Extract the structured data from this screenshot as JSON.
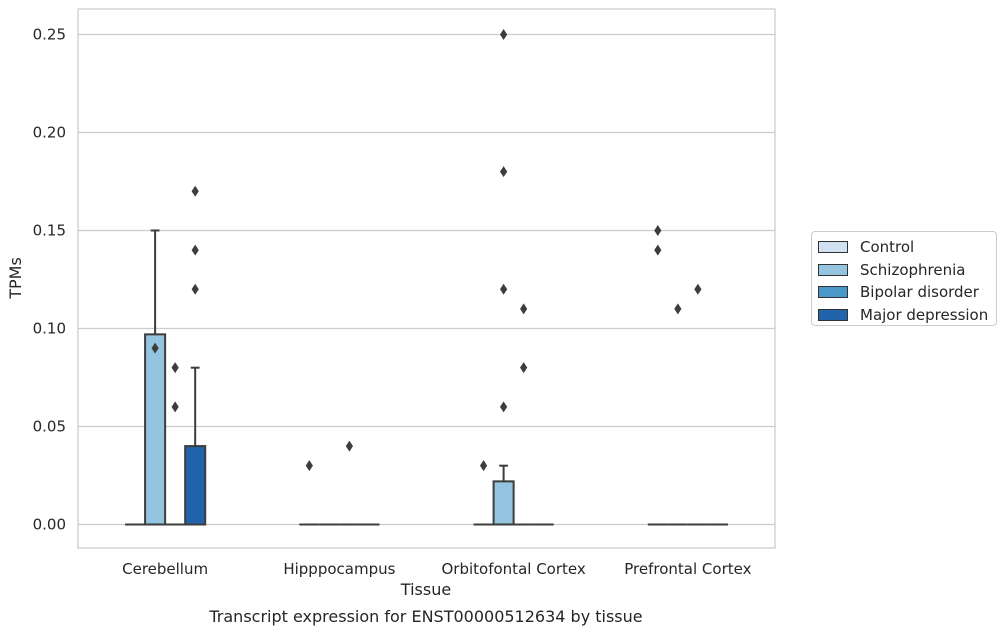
{
  "chart_data": {
    "type": "box",
    "title": "Transcript expression for ENST00000512634 by tissue",
    "xlabel": "Tissue",
    "ylabel": "TPMs",
    "ylim": [
      -0.012,
      0.263
    ],
    "yticks": [
      "0.00",
      "0.05",
      "0.10",
      "0.15",
      "0.20",
      "0.25"
    ],
    "grid": "horizontal",
    "legend_position": "outside-right",
    "categories": [
      "Cerebellum",
      "Hipppocampus",
      "Orbitofontal Cortex",
      "Prefrontal Cortex"
    ],
    "series": [
      {
        "name": "Control",
        "color": "#d0e1f2",
        "boxes": [
          {
            "q1": 0,
            "median": 0,
            "q3": 0,
            "whisker_low": 0,
            "whisker_high": 0,
            "outliers": []
          },
          {
            "q1": 0,
            "median": 0,
            "q3": 0,
            "whisker_low": 0,
            "whisker_high": 0,
            "outliers": [
              0.03
            ]
          },
          {
            "q1": 0,
            "median": 0,
            "q3": 0,
            "whisker_low": 0,
            "whisker_high": 0,
            "outliers": [
              0.03
            ]
          },
          {
            "q1": 0,
            "median": 0,
            "q3": 0,
            "whisker_low": 0,
            "whisker_high": 0,
            "outliers": [
              0.14,
              0.15
            ]
          }
        ]
      },
      {
        "name": "Schizophrenia",
        "color": "#94c4df",
        "boxes": [
          {
            "q1": 0,
            "median": 0,
            "q3": 0.097,
            "whisker_low": 0,
            "whisker_high": 0.15,
            "outliers": [
              0.09
            ]
          },
          {
            "q1": 0,
            "median": 0,
            "q3": 0,
            "whisker_low": 0,
            "whisker_high": 0,
            "outliers": []
          },
          {
            "q1": 0,
            "median": 0,
            "q3": 0.022,
            "whisker_low": 0,
            "whisker_high": 0.03,
            "outliers": [
              0.06,
              0.12,
              0.18,
              0.25
            ]
          },
          {
            "q1": 0,
            "median": 0,
            "q3": 0,
            "whisker_low": 0,
            "whisker_high": 0,
            "outliers": [
              0.11
            ]
          }
        ]
      },
      {
        "name": "Bipolar disorder",
        "color": "#4a98c9",
        "boxes": [
          {
            "q1": 0,
            "median": 0,
            "q3": 0,
            "whisker_low": 0,
            "whisker_high": 0,
            "outliers": [
              0.06,
              0.08
            ]
          },
          {
            "q1": 0,
            "median": 0,
            "q3": 0,
            "whisker_low": 0,
            "whisker_high": 0,
            "outliers": [
              0.04
            ]
          },
          {
            "q1": 0,
            "median": 0,
            "q3": 0,
            "whisker_low": 0,
            "whisker_high": 0,
            "outliers": [
              0.08,
              0.11
            ]
          },
          {
            "q1": 0,
            "median": 0,
            "q3": 0,
            "whisker_low": 0,
            "whisker_high": 0,
            "outliers": [
              0.12
            ]
          }
        ]
      },
      {
        "name": "Major depression",
        "color": "#2164ab",
        "boxes": [
          {
            "q1": 0,
            "median": 0,
            "q3": 0.04,
            "whisker_low": 0,
            "whisker_high": 0.08,
            "outliers": [
              0.12,
              0.14,
              0.17
            ]
          },
          {
            "q1": 0,
            "median": 0,
            "q3": 0,
            "whisker_low": 0,
            "whisker_high": 0,
            "outliers": []
          },
          {
            "q1": 0,
            "median": 0,
            "q3": 0,
            "whisker_low": 0,
            "whisker_high": 0,
            "outliers": []
          },
          {
            "q1": 0,
            "median": 0,
            "q3": 0,
            "whisker_low": 0,
            "whisker_high": 0,
            "outliers": []
          }
        ]
      }
    ]
  }
}
